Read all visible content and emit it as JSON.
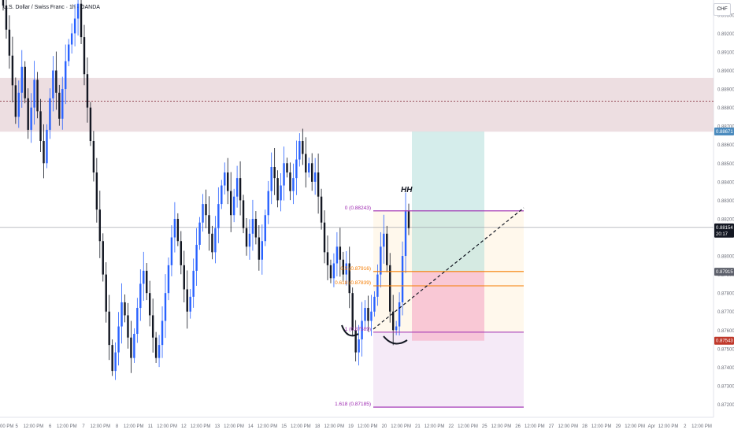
{
  "header": {
    "title": "U.S. Dollar / Swiss Franc · 1h · OANDA",
    "currency": "CHF"
  },
  "chart_data": {
    "type": "candlestick",
    "title": "U.S. Dollar / Swiss Franc · 1h · OANDA",
    "ylim": [
      0.8713,
      0.8938
    ],
    "y_ticks": [
      "0.89300",
      "0.89200",
      "0.89100",
      "0.89000",
      "0.88900",
      "0.88800",
      "0.88700",
      "0.88600",
      "0.88500",
      "0.88400",
      "0.88300",
      "0.88200",
      "0.88000",
      "0.87900",
      "0.87800",
      "0.87700",
      "0.87600",
      "0.87500",
      "0.87400",
      "0.87300",
      "0.87200"
    ],
    "x_labels": [
      "00 PM",
      "5",
      "12:00 PM",
      "6",
      "12:00 PM",
      "7",
      "12:00 PM",
      "8",
      "12:00 PM",
      "11",
      "12:00 PM",
      "12",
      "12:00 PM",
      "13",
      "12:00 PM",
      "14",
      "12:00 PM",
      "15",
      "12:00 PM",
      "18",
      "12:00 PM",
      "19",
      "12:00 PM",
      "20",
      "12:00 PM",
      "21",
      "12:00 PM",
      "22",
      "12:00 PM",
      "25",
      "12:00 PM",
      "26",
      "12:00 PM",
      "27",
      "12:00 PM",
      "28",
      "12:00 PM",
      "29",
      "12:00 PM",
      "Apr",
      "12:00 PM",
      "2",
      "12:00 PM"
    ],
    "price_badges": [
      {
        "value": "0.88671",
        "color": "#4b8bbe"
      },
      {
        "value": "0.88154",
        "sub": "20:17",
        "color": "#131722"
      },
      {
        "value": "0.87915",
        "color": "#5d606b"
      },
      {
        "value": "0.87543",
        "color": "#c0392b"
      }
    ],
    "current_price": 0.88154,
    "zones": [
      {
        "kind": "supply",
        "from": 0.8867,
        "to": 0.8896,
        "mid": 0.88835,
        "color": "#e7d3d7"
      }
    ],
    "fib_levels": [
      {
        "label": "0 (0.88243)",
        "value": 0.88243,
        "color": "#9c27b0"
      },
      {
        "label": "0.5 (0.87916)",
        "value": 0.87916,
        "color": "#f57c00"
      },
      {
        "label": "0.618 (0.87839)",
        "value": 0.87839,
        "color": "#f57c00"
      },
      {
        "label": "1 (0.87589)",
        "value": 0.87589,
        "color": "#9c27b0"
      },
      {
        "label": "1.618 (0.87185)",
        "value": 0.87185,
        "color": "#9c27b0"
      }
    ],
    "position": {
      "entry": 0.87916,
      "target": 0.88671,
      "stop": 0.87543
    },
    "annotations": [
      "HH"
    ],
    "closes": [
      0.8935,
      0.8922,
      0.8908,
      0.8892,
      0.8875,
      0.8888,
      0.8902,
      0.8885,
      0.8868,
      0.888,
      0.8895,
      0.8878,
      0.8862,
      0.885,
      0.8868,
      0.8885,
      0.89,
      0.8888,
      0.8874,
      0.889,
      0.8905,
      0.8914,
      0.892,
      0.8928,
      0.8936,
      0.8918,
      0.8898,
      0.888,
      0.8862,
      0.8845,
      0.8825,
      0.8808,
      0.879,
      0.877,
      0.8752,
      0.8738,
      0.8748,
      0.8762,
      0.8775,
      0.8768,
      0.8756,
      0.8745,
      0.8758,
      0.8772,
      0.8785,
      0.8792,
      0.878,
      0.8768,
      0.8756,
      0.8745,
      0.8752,
      0.8765,
      0.878,
      0.8795,
      0.881,
      0.882,
      0.8808,
      0.8795,
      0.8782,
      0.877,
      0.8778,
      0.8792,
      0.8806,
      0.8818,
      0.8828,
      0.8822,
      0.8812,
      0.8802,
      0.8815,
      0.8828,
      0.8838,
      0.8845,
      0.8835,
      0.8822,
      0.8832,
      0.8842,
      0.883,
      0.8815,
      0.8805,
      0.8812,
      0.882,
      0.881,
      0.8798,
      0.8808,
      0.8822,
      0.8835,
      0.8848,
      0.8842,
      0.883,
      0.8838,
      0.885,
      0.8845,
      0.8835,
      0.8842,
      0.8852,
      0.8862,
      0.8855,
      0.8845,
      0.885,
      0.884,
      0.8845,
      0.8832,
      0.8818,
      0.8802,
      0.8795,
      0.8788,
      0.8796,
      0.8805,
      0.8798,
      0.879,
      0.8796,
      0.878,
      0.876,
      0.8748,
      0.8755,
      0.8765,
      0.8772,
      0.8765,
      0.877,
      0.8778,
      0.879,
      0.8805,
      0.8812,
      0.8795,
      0.877,
      0.876,
      0.8762,
      0.8775,
      0.88,
      0.8824,
      0.8815
    ]
  }
}
